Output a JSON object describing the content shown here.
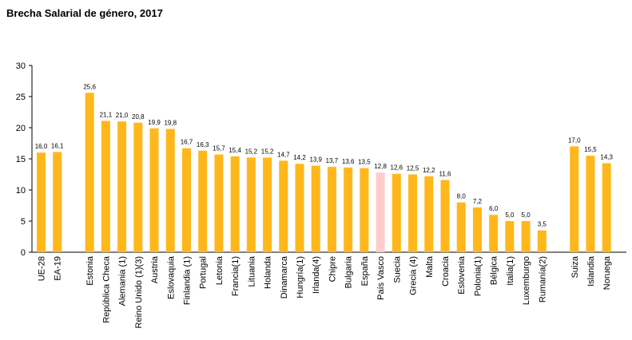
{
  "chart_data": {
    "type": "bar",
    "title": "Brecha Salarial de género, 2017",
    "xlabel": "",
    "ylabel": "",
    "ylim": [
      0,
      30
    ],
    "yticks": [
      0,
      5,
      10,
      15,
      20,
      25,
      30
    ],
    "grid": false,
    "legend": "none",
    "colors": {
      "bar": "#FFB71B",
      "highlight": "#FFCCCC",
      "axis": "#000000",
      "text": "#000000"
    },
    "highlight_category": "País Vasco",
    "value_labels": [
      "16,0",
      "16,1",
      "25,6",
      "21,1",
      "21,0",
      "20,8",
      "19,9",
      "19,8",
      "16,7",
      "16,3",
      "15,7",
      "15,4",
      "15,2",
      "15,2",
      "14,7",
      "14,2",
      "13,9",
      "13,7",
      "13,6",
      "13,5",
      "12,8",
      "12,6",
      "12,5",
      "12,2",
      "11,6",
      "8,0",
      "7,2",
      "6,0",
      "5,0",
      "5,0",
      "3,5",
      "17,0",
      "15,5",
      "14,3"
    ],
    "categories": [
      "UE-28",
      "EA-19",
      "Estonia",
      "República Checa",
      "Alemania (1)",
      "Reino Unido (1)(3)",
      "Austria",
      "Eslovaquia",
      "Finlandia (1)",
      "Portugal",
      "Letonia",
      "Francia(1)",
      "Lituania",
      "Holanda",
      "Dinamarca",
      "Hungría(1)",
      "Irlanda(4)",
      "Chipre",
      "Bulgaria",
      "España",
      "País Vasco",
      "Suecia",
      "Grecia (4)",
      "Malta",
      "Croacia",
      "Eslovenia",
      "Polonia(1)",
      "Bélgica",
      "Italia(1)",
      "Luxemburgo",
      "Rumanía(2)",
      "Suiza",
      "Islandia",
      "Noruega"
    ],
    "values": [
      16.0,
      16.1,
      25.6,
      21.1,
      21.0,
      20.8,
      19.9,
      19.8,
      16.7,
      16.3,
      15.7,
      15.4,
      15.2,
      15.2,
      14.7,
      14.2,
      13.9,
      13.7,
      13.6,
      13.5,
      12.8,
      12.6,
      12.5,
      12.2,
      11.6,
      8.0,
      7.2,
      6.0,
      5.0,
      5.0,
      3.5,
      17.0,
      15.5,
      14.3
    ]
  }
}
